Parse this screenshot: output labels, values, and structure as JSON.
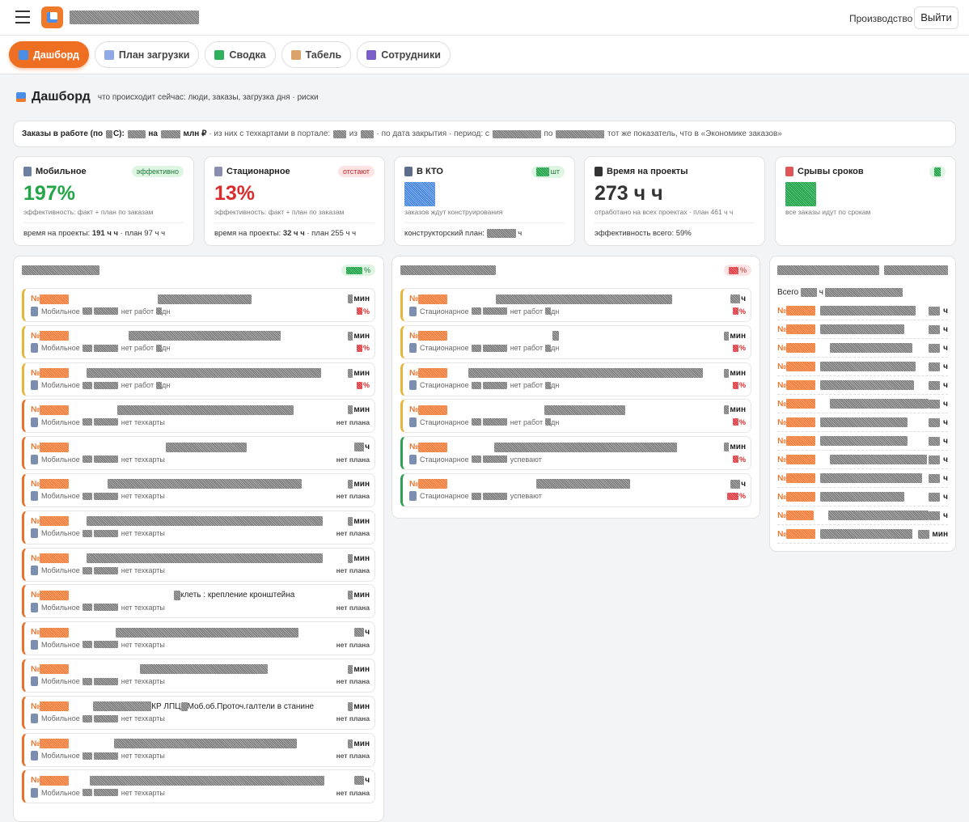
{
  "header": {
    "section": "Производство",
    "logout": "Выйти"
  },
  "tabs": [
    "Дашборд",
    "План загрузки",
    "Сводка",
    "Табель",
    "Сотрудники"
  ],
  "page": {
    "title": "Дашборд",
    "subtitle": "что происходит сейчас: люди, заказы, загрузка дня · риски"
  },
  "info_bar": {
    "bold_segments": [
      "Заказы в работе (по ",
      "С): ",
      " на ",
      " млн ₽"
    ],
    "segments": [
      " · из них с техкартами в портале: ",
      " из ",
      " · по дата закрытия · период: с ",
      " по ",
      " тот же показатель, что в «Экономике заказов»"
    ]
  },
  "cards": [
    {
      "title": "Мобильное",
      "badge": "эффективно",
      "tone": "good",
      "value": "197%",
      "caption": "эффективность: факт + план по заказам",
      "footer": "время на проекты: ",
      "footer_value": "191 ч ч",
      "footer_rest": " · план 97 ч ч"
    },
    {
      "title": "Стационарное",
      "badge": "отстают",
      "tone": "bad",
      "value": "13%",
      "caption": "эффективность: факт + план по заказам",
      "footer": "время на проекты: ",
      "footer_value": "32 ч ч",
      "footer_rest": " · план 255 ч ч"
    },
    {
      "title": "В КТО",
      "badge": "шт",
      "tone": "good",
      "caption": "заказов ждут конструирования",
      "footer": "конструкторский план: ",
      "footer_rest": " ч"
    },
    {
      "title": "Время на проекты",
      "tone": "dark",
      "value": "273 ч ч",
      "caption": "отработано на всех проектах · план 461 ч ч",
      "footer": "эффективность всего: 59%"
    },
    {
      "title": "Срывы сроков",
      "tone": "good",
      "caption": "все заказы идут по срокам"
    }
  ],
  "left_column": {
    "badge": "%",
    "tone": "good",
    "items": [
      {
        "no": "№",
        "unit": "мин",
        "dept": "Мобильное",
        "status": "нет работ",
        "days": "дн",
        "pct": "%",
        "accent": "yellow"
      },
      {
        "no": "№",
        "unit": "мин",
        "dept": "Мобильное",
        "status": "нет работ",
        "days": "дн",
        "pct": "%",
        "accent": "yellow"
      },
      {
        "no": "№",
        "unit": "мин",
        "dept": "Мобильное",
        "status": "нет работ",
        "days": "дн",
        "pct": "%",
        "accent": "yellow"
      },
      {
        "no": "№",
        "unit": "мин",
        "dept": "Мобильное",
        "status": "нет техкарты",
        "plan": "нет плана",
        "accent": "orange"
      },
      {
        "no": "№",
        "unit": "ч",
        "dept": "Мобильное",
        "status": "нет техкарты",
        "plan": "нет плана",
        "accent": "orange"
      },
      {
        "no": "№",
        "unit": "мин",
        "dept": "Мобильное",
        "status": "нет техкарты",
        "plan": "нет плана",
        "accent": "orange"
      },
      {
        "no": "№",
        "unit": "мин",
        "dept": "Мобильное",
        "status": "нет техкарты",
        "plan": "нет плана",
        "accent": "orange"
      },
      {
        "no": "№",
        "unit": "мин",
        "dept": "Мобильное",
        "status": "нет техкарты",
        "plan": "нет плана",
        "accent": "orange"
      },
      {
        "no": "№",
        "title": "клеть : крепление кронштейна",
        "unit": "мин",
        "dept": "Мобильное",
        "status": "нет техкарты",
        "plan": "нет плана",
        "accent": "orange"
      },
      {
        "no": "№",
        "unit": "ч",
        "dept": "Мобильное",
        "status": "нет техкарты",
        "plan": "нет плана",
        "accent": "orange"
      },
      {
        "no": "№",
        "unit": "мин",
        "dept": "Мобильное",
        "status": "нет техкарты",
        "plan": "нет плана",
        "accent": "orange"
      },
      {
        "no": "№",
        "title": "КР ЛПЦ",
        "title2": "Моб.об.Проточ.галтели в станине",
        "unit": "мин",
        "dept": "Мобильное",
        "status": "нет техкарты",
        "plan": "нет плана",
        "accent": "orange"
      },
      {
        "no": "№",
        "unit": "мин",
        "dept": "Мобильное",
        "status": "нет техкарты",
        "plan": "нет плана",
        "accent": "orange"
      },
      {
        "no": "№",
        "unit": "ч",
        "dept": "Мобильное",
        "status": "нет техкарты",
        "plan": "нет плана",
        "accent": "orange"
      }
    ]
  },
  "middle_column": {
    "badge": "%",
    "tone": "bad",
    "items": [
      {
        "no": "№",
        "unit": "ч",
        "dept": "Стационарное",
        "status": "нет работ",
        "days": "дн",
        "pct": "%",
        "accent": "yellow"
      },
      {
        "no": "№",
        "unit": "мин",
        "dept": "Стационарное",
        "status": "нет работ",
        "days": "дн",
        "pct": "%",
        "accent": "yellow"
      },
      {
        "no": "№",
        "unit": "мин",
        "dept": "Стационарное",
        "status": "нет работ",
        "days": "дн",
        "pct": "%",
        "accent": "yellow"
      },
      {
        "no": "№",
        "unit": "мин",
        "dept": "Стационарное",
        "status": "нет работ",
        "days": "дн",
        "pct": "%",
        "accent": "yellow"
      },
      {
        "no": "№",
        "unit": "мин",
        "dept": "Стационарное",
        "status": "успевают",
        "pct": "%",
        "accent": "green"
      },
      {
        "no": "№",
        "unit": "ч",
        "dept": "Стационарное",
        "status": "успевают",
        "pct": "%",
        "accent": "green"
      }
    ]
  },
  "right_column": {
    "total_label": "Всего ",
    "total_unit": " ч",
    "rows": [
      {
        "no": "№",
        "unit": " ч"
      },
      {
        "no": "№",
        "unit": " ч"
      },
      {
        "no": "№",
        "unit": " ч"
      },
      {
        "no": "№",
        "unit": " ч"
      },
      {
        "no": "№",
        "unit": " ч"
      },
      {
        "no": "№",
        "unit": " ч"
      },
      {
        "no": "№",
        "unit": " ч"
      },
      {
        "no": "№",
        "unit": " ч"
      },
      {
        "no": "№",
        "unit": " ч"
      },
      {
        "no": "№",
        "unit": " ч"
      },
      {
        "no": "№",
        "unit": " ч"
      },
      {
        "no": "№",
        "unit": " ч"
      },
      {
        "no": "№",
        "unit": " мин"
      }
    ]
  }
}
